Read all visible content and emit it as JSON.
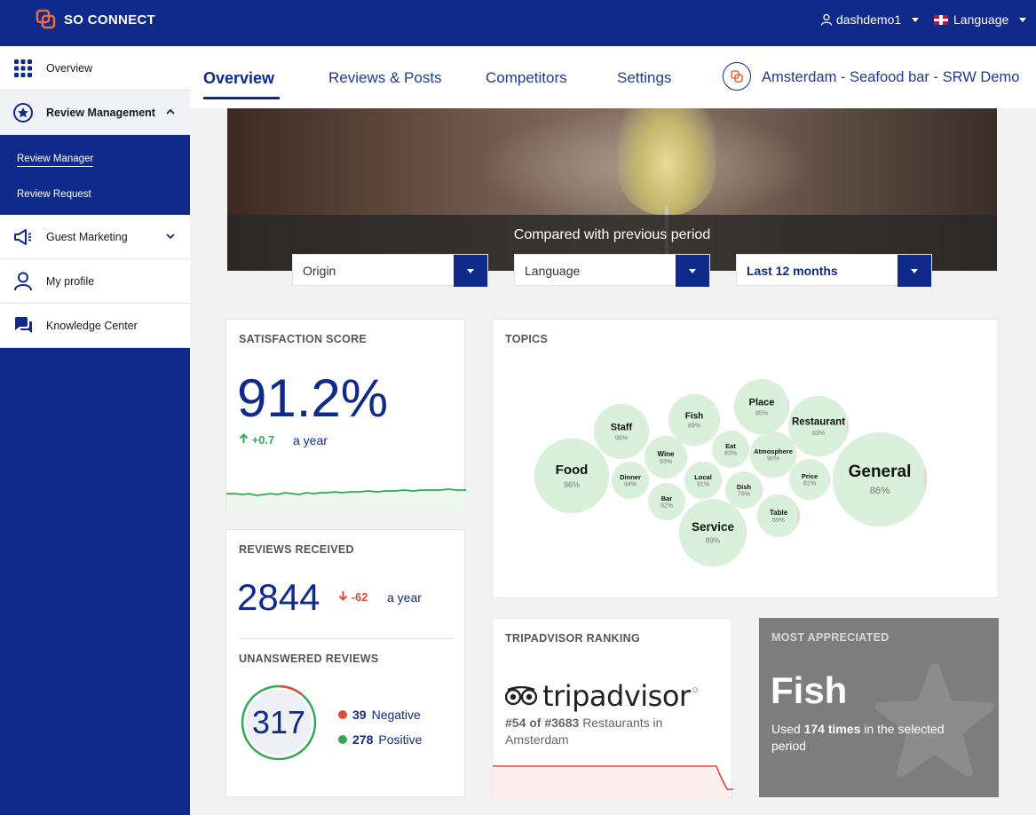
{
  "header": {
    "brand": "SO CONNECT",
    "user": "dashdemo1",
    "language_label": "Language"
  },
  "sidebar": {
    "items": [
      {
        "label": "Overview",
        "icon": "grid-icon"
      },
      {
        "label": "Review Management",
        "icon": "star-badge-icon"
      },
      {
        "label": "Guest Marketing",
        "icon": "megaphone-icon"
      },
      {
        "label": "My profile",
        "icon": "person-icon"
      },
      {
        "label": "Knowledge Center",
        "icon": "chat-bubbles-icon"
      }
    ],
    "subitems": [
      {
        "label": "Review Manager"
      },
      {
        "label": "Review Request"
      }
    ]
  },
  "tabs": [
    {
      "label": "Overview"
    },
    {
      "label": "Reviews & Posts"
    },
    {
      "label": "Competitors"
    },
    {
      "label": "Settings"
    }
  ],
  "location": "Amsterdam - Seafood bar - SRW Demo",
  "hero": {
    "title": "Compared with previous period"
  },
  "filters": [
    {
      "value": "Origin"
    },
    {
      "value": "Language"
    },
    {
      "value": "Last 12 months"
    }
  ],
  "satisfaction": {
    "title": "SATISFACTION SCORE",
    "score": "91.2%",
    "delta": "+0.7",
    "period": "a year"
  },
  "reviews": {
    "title": "REVIEWS RECEIVED",
    "count": "2844",
    "delta": "-62",
    "period": "a year"
  },
  "unanswered": {
    "title": "UNANSWERED REVIEWS",
    "total": "317",
    "negative_count": "39",
    "negative_label": "Negative",
    "positive_count": "278",
    "positive_label": "Positive"
  },
  "topics": {
    "title": "TOPICS",
    "items": [
      {
        "name": "Food",
        "pct": "96%"
      },
      {
        "name": "Staff",
        "pct": "95%"
      },
      {
        "name": "Dinner",
        "pct": "94%"
      },
      {
        "name": "Wine",
        "pct": "93%"
      },
      {
        "name": "Bar",
        "pct": "92%"
      },
      {
        "name": "Fish",
        "pct": "89%"
      },
      {
        "name": "Local",
        "pct": "91%"
      },
      {
        "name": "Service",
        "pct": "89%"
      },
      {
        "name": "Eat",
        "pct": "83%"
      },
      {
        "name": "Dish",
        "pct": "78%"
      },
      {
        "name": "Place",
        "pct": "85%"
      },
      {
        "name": "Atmosphere",
        "pct": "90%"
      },
      {
        "name": "Table",
        "pct": "69%"
      },
      {
        "name": "Restaurant",
        "pct": "83%"
      },
      {
        "name": "Price",
        "pct": "81%"
      },
      {
        "name": "General",
        "pct": "86%"
      }
    ]
  },
  "tripadvisor": {
    "title": "TRIPADVISOR RANKING",
    "brand": "tripadvisor",
    "rank": "#54 of #3683",
    "rank_rest": "Restaurants in Amsterdam"
  },
  "most_appreciated": {
    "title": "MOST APPRECIATED",
    "topic": "Fish",
    "text_pre": "Used",
    "times": "174 times",
    "text_post": "in the selected period"
  },
  "colors": {
    "brand_blue": "#0f2a8a",
    "accent_orange": "#f26a3a",
    "positive_green": "#2eab52",
    "negative_red": "#e24a3a",
    "bubble_green": "#d9f0db",
    "bubble_pink": "#f6cfcf"
  }
}
